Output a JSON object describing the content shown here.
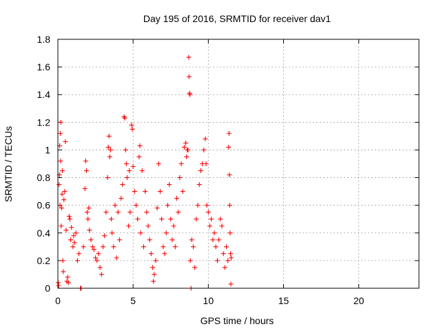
{
  "chart_data": {
    "type": "scatter",
    "title": "Day 195 of 2016, SRMTID for receiver dav1",
    "xlabel": "GPS time / hours",
    "ylabel": "SRMTID / TECUs",
    "xlim": [
      0,
      24
    ],
    "ylim": [
      0,
      1.8
    ],
    "xticks": [
      0,
      5,
      10,
      15,
      20
    ],
    "yticks": [
      0,
      0.2,
      0.4,
      0.6,
      0.8,
      1,
      1.2,
      1.4,
      1.6,
      1.8
    ],
    "ytick_labels": [
      "0",
      "0.2",
      "0.4",
      "0.6",
      "0.8",
      "1",
      "1.2",
      "1.4",
      "1.6",
      "1.8"
    ],
    "grid": true,
    "marker": "+",
    "series": [
      {
        "name": "dav1",
        "color": "#ff0000",
        "points": [
          [
            0.02,
            0.04
          ],
          [
            0.05,
            0.02
          ],
          [
            0.08,
            0.75
          ],
          [
            0.1,
            0.82
          ],
          [
            0.12,
            1.03
          ],
          [
            0.14,
            0.6
          ],
          [
            0.16,
            1.12
          ],
          [
            0.18,
            0.92
          ],
          [
            0.2,
            1.2
          ],
          [
            0.22,
            0.45
          ],
          [
            0.25,
            0.58
          ],
          [
            0.28,
            0.68
          ],
          [
            0.3,
            0.85
          ],
          [
            0.33,
            0.2
          ],
          [
            0.36,
            0.12
          ],
          [
            0.4,
            0.64
          ],
          [
            0.45,
            0.7
          ],
          [
            0.5,
            1.06
          ],
          [
            0.55,
            0.42
          ],
          [
            0.6,
            0.05
          ],
          [
            0.65,
            0.08
          ],
          [
            0.7,
            0.04
          ],
          [
            0.75,
            0.52
          ],
          [
            0.8,
            0.5
          ],
          [
            0.85,
            0.35
          ],
          [
            0.9,
            0.44
          ],
          [
            1.0,
            0.3
          ],
          [
            1.05,
            0.38
          ],
          [
            1.1,
            0.33
          ],
          [
            1.2,
            0.4
          ],
          [
            1.3,
            0.2
          ],
          [
            1.4,
            0.25
          ],
          [
            1.5,
            0.0
          ],
          [
            1.55,
            0.0
          ],
          [
            1.7,
            0.3
          ],
          [
            1.8,
            0.72
          ],
          [
            1.85,
            0.92
          ],
          [
            1.9,
            0.85
          ],
          [
            1.95,
            0.55
          ],
          [
            2.0,
            0.5
          ],
          [
            2.05,
            0.58
          ],
          [
            2.1,
            0.42
          ],
          [
            2.2,
            0.35
          ],
          [
            2.3,
            0.3
          ],
          [
            2.4,
            0.28
          ],
          [
            2.5,
            0.22
          ],
          [
            2.6,
            0.2
          ],
          [
            2.7,
            0.25
          ],
          [
            2.8,
            0.15
          ],
          [
            2.9,
            0.1
          ],
          [
            3.0,
            0.3
          ],
          [
            3.1,
            0.38
          ],
          [
            3.2,
            0.55
          ],
          [
            3.3,
            0.8
          ],
          [
            3.35,
            1.02
          ],
          [
            3.4,
            1.1
          ],
          [
            3.45,
            0.95
          ],
          [
            3.5,
            1.0
          ],
          [
            3.55,
            0.5
          ],
          [
            3.6,
            0.4
          ],
          [
            3.7,
            0.3
          ],
          [
            3.8,
            0.6
          ],
          [
            3.9,
            0.22
          ],
          [
            4.0,
            0.55
          ],
          [
            4.1,
            0.35
          ],
          [
            4.2,
            0.65
          ],
          [
            4.3,
            0.75
          ],
          [
            4.4,
            1.24
          ],
          [
            4.45,
            1.23
          ],
          [
            4.5,
            1.0
          ],
          [
            4.55,
            0.9
          ],
          [
            4.6,
            0.8
          ],
          [
            4.7,
            0.45
          ],
          [
            4.75,
            0.85
          ],
          [
            4.8,
            0.55
          ],
          [
            4.9,
            1.18
          ],
          [
            4.95,
            1.15
          ],
          [
            5.0,
            0.88
          ],
          [
            5.1,
            0.7
          ],
          [
            5.2,
            0.6
          ],
          [
            5.3,
            0.5
          ],
          [
            5.4,
            0.95
          ],
          [
            5.45,
            1.03
          ],
          [
            5.5,
            0.4
          ],
          [
            5.6,
            0.85
          ],
          [
            5.7,
            0.3
          ],
          [
            5.8,
            0.7
          ],
          [
            5.9,
            0.55
          ],
          [
            6.0,
            0.45
          ],
          [
            6.1,
            0.35
          ],
          [
            6.2,
            0.25
          ],
          [
            6.3,
            0.15
          ],
          [
            6.35,
            0.05
          ],
          [
            6.4,
            0.1
          ],
          [
            6.5,
            0.2
          ],
          [
            6.6,
            0.58
          ],
          [
            6.7,
            0.9
          ],
          [
            6.8,
            0.7
          ],
          [
            6.9,
            0.5
          ],
          [
            7.0,
            0.3
          ],
          [
            7.1,
            0.25
          ],
          [
            7.2,
            0.4
          ],
          [
            7.3,
            0.6
          ],
          [
            7.4,
            0.75
          ],
          [
            7.5,
            0.5
          ],
          [
            7.6,
            0.35
          ],
          [
            7.7,
            0.45
          ],
          [
            7.8,
            0.3
          ],
          [
            7.9,
            0.65
          ],
          [
            8.0,
            0.55
          ],
          [
            8.1,
            0.8
          ],
          [
            8.2,
            0.9
          ],
          [
            8.3,
            0.7
          ],
          [
            8.4,
            1.02
          ],
          [
            8.5,
            1.05
          ],
          [
            8.55,
            0.95
          ],
          [
            8.6,
            1.0
          ],
          [
            8.65,
            1.0
          ],
          [
            8.7,
            1.67
          ],
          [
            8.72,
            1.53
          ],
          [
            8.75,
            1.41
          ],
          [
            8.78,
            1.4
          ],
          [
            8.8,
            0.2
          ],
          [
            8.85,
            0.0
          ],
          [
            8.9,
            0.35
          ],
          [
            9.0,
            0.3
          ],
          [
            9.1,
            0.15
          ],
          [
            9.2,
            0.5
          ],
          [
            9.3,
            0.6
          ],
          [
            9.4,
            0.75
          ],
          [
            9.5,
            0.85
          ],
          [
            9.6,
            0.9
          ],
          [
            9.7,
            1.0
          ],
          [
            9.8,
            1.08
          ],
          [
            9.85,
            0.9
          ],
          [
            9.9,
            0.6
          ],
          [
            10.0,
            0.55
          ],
          [
            10.1,
            0.45
          ],
          [
            10.2,
            0.5
          ],
          [
            10.3,
            0.35
          ],
          [
            10.4,
            0.4
          ],
          [
            10.5,
            0.3
          ],
          [
            10.6,
            0.2
          ],
          [
            10.7,
            0.35
          ],
          [
            10.8,
            0.5
          ],
          [
            10.9,
            0.45
          ],
          [
            11.0,
            0.25
          ],
          [
            11.1,
            0.15
          ],
          [
            11.2,
            0.3
          ],
          [
            11.3,
            0.2
          ],
          [
            11.35,
            1.02
          ],
          [
            11.38,
            1.12
          ],
          [
            11.4,
            0.82
          ],
          [
            11.42,
            0.6
          ],
          [
            11.45,
            0.4
          ],
          [
            11.48,
            0.25
          ],
          [
            11.5,
            0.03
          ],
          [
            11.52,
            0.22
          ]
        ]
      }
    ]
  }
}
